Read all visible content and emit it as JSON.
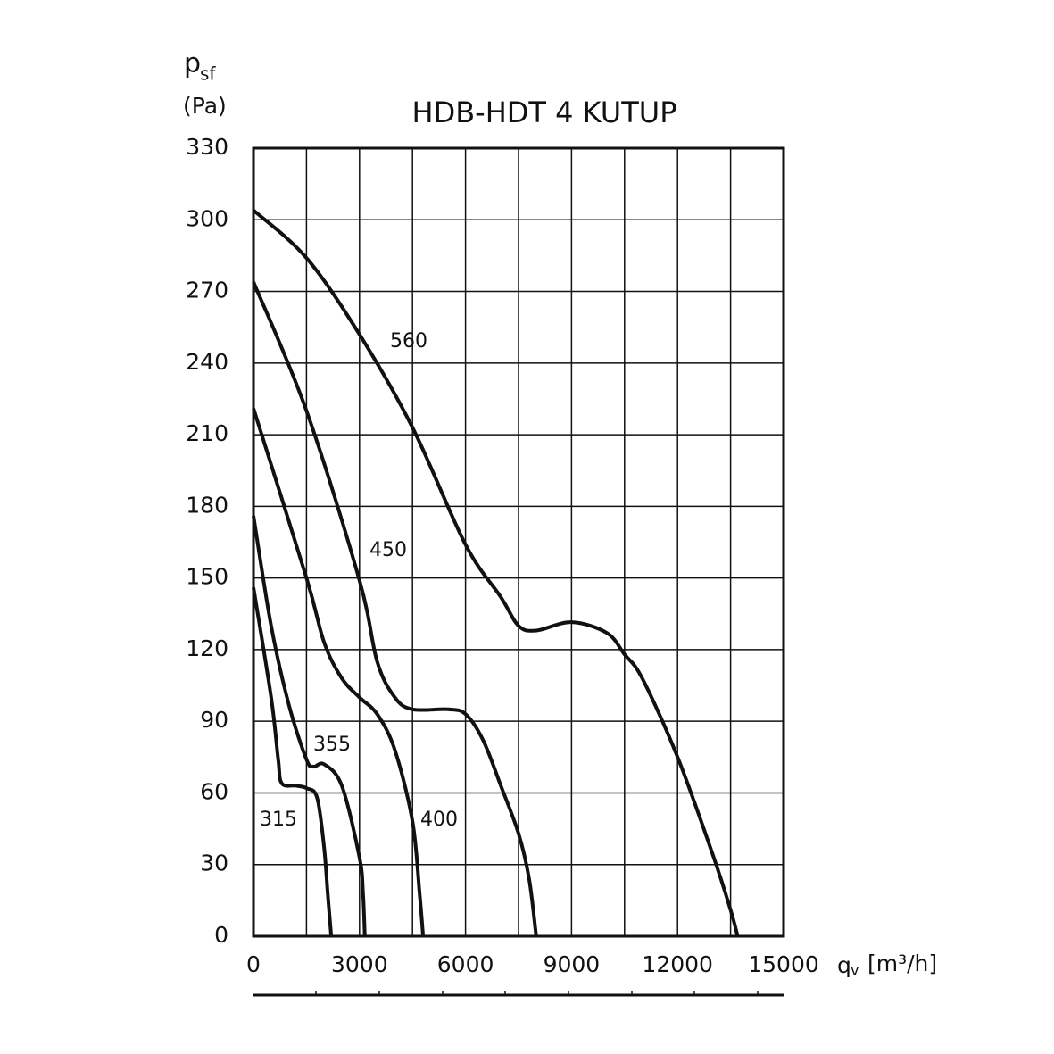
{
  "chart_data": {
    "type": "line",
    "title": "HDB-HDT 4 KUTUP",
    "y_label": "p",
    "y_label_sub": "sf",
    "y_unit": "(Pa)",
    "x_label": "q",
    "x_label_sub": "v",
    "x_unit": "[m³/h]",
    "xlim": [
      0,
      15000
    ],
    "xticks": [
      0,
      3000,
      6000,
      9000,
      12000,
      15000
    ],
    "x_minor_grid": [
      1500,
      4500,
      7500,
      10500,
      13500
    ],
    "ylim": [
      0,
      330
    ],
    "yticks": [
      0,
      30,
      60,
      90,
      120,
      150,
      180,
      210,
      240,
      270,
      300,
      330
    ],
    "grid": true,
    "series": [
      {
        "name": "560",
        "color": "#111111",
        "x": [
          0,
          1500,
          3000,
          4500,
          6000,
          7000,
          7500,
          8000,
          9000,
          10000,
          10500,
          11000,
          12000,
          13000,
          13500,
          13700
        ],
        "values": [
          304,
          284,
          252,
          213,
          164,
          142,
          130,
          128,
          131.5,
          127,
          118,
          108,
          75,
          34,
          11,
          0
        ]
      },
      {
        "name": "450",
        "color": "#111111",
        "x": [
          0,
          1500,
          3000,
          3500,
          4000,
          4500,
          5500,
          6000,
          6500,
          7000,
          7500,
          7800,
          8000
        ],
        "values": [
          274,
          220,
          149,
          115,
          100,
          95,
          95,
          93,
          82,
          63,
          43,
          24,
          0
        ]
      },
      {
        "name": "400",
        "color": "#111111",
        "x": [
          0,
          1500,
          2000,
          2500,
          3000,
          3500,
          4000,
          4500,
          4700,
          4800
        ],
        "values": [
          221,
          150,
          123,
          108,
          100,
          93,
          78,
          48,
          18,
          0
        ]
      },
      {
        "name": "355",
        "color": "#111111",
        "x": [
          0,
          500,
          1000,
          1500,
          1700,
          2000,
          2500,
          3000,
          3100,
          3150
        ],
        "values": [
          176,
          130,
          97,
          74,
          71,
          72,
          63,
          33,
          18,
          0
        ]
      },
      {
        "name": "315",
        "color": "#111111",
        "x": [
          0,
          500,
          700,
          800,
          1200,
          1500,
          1800,
          2000,
          2100,
          2200
        ],
        "values": [
          146,
          100,
          74,
          64,
          63,
          62,
          58,
          37,
          18,
          0
        ]
      }
    ]
  }
}
